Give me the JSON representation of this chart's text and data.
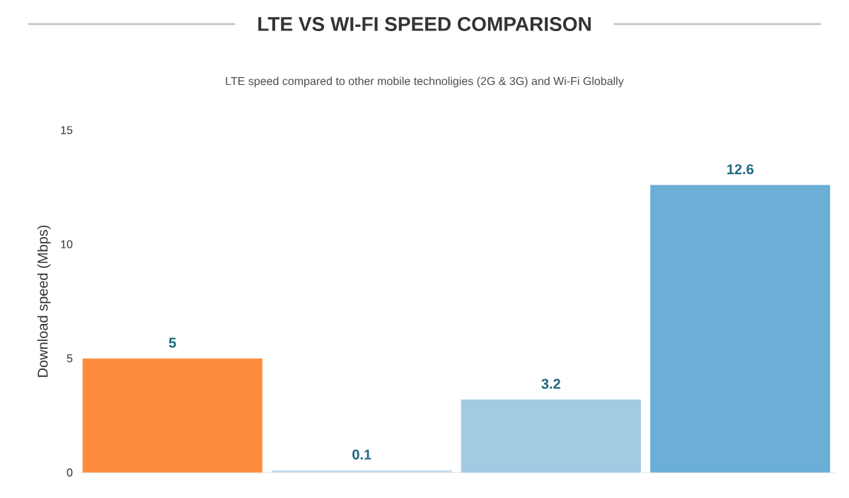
{
  "chart_data": {
    "type": "bar",
    "title": "LTE VS WI-FI SPEED COMPARISON",
    "subtitle": "LTE speed compared to other mobile technoligies (2G & 3G) and Wi-Fi Globally",
    "ylabel": "Download speed (Mbps)",
    "categories": [
      null,
      null,
      null,
      null
    ],
    "values": [
      5,
      0.1,
      3.2,
      12.6
    ],
    "colors": [
      "#fd8c3c",
      "#c6dbef",
      "#a2cae2",
      "#6baed6"
    ],
    "ylim": [
      0,
      15
    ],
    "yticks": [
      0,
      5,
      10,
      15
    ],
    "data_labels": true
  }
}
